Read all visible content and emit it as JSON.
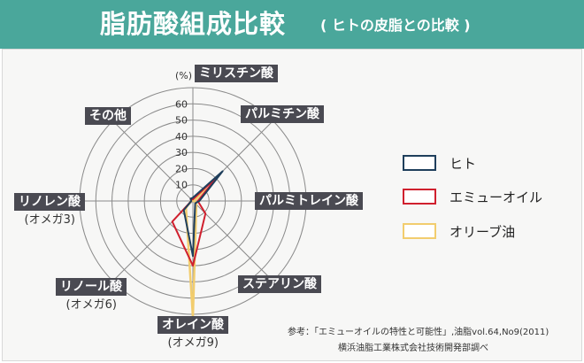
{
  "header": {
    "title": "脂肪酸組成比較",
    "subtitle": "( ヒトの皮脂との比較 )"
  },
  "chart_data": {
    "type": "radar",
    "unit": "(%)",
    "rmax": 70,
    "ticks": [
      10,
      20,
      30,
      40,
      50,
      60
    ],
    "axes": [
      {
        "label": "ミリスチン酸",
        "sub": ""
      },
      {
        "label": "パルミチン酸",
        "sub": ""
      },
      {
        "label": "パルミトレイン酸",
        "sub": ""
      },
      {
        "label": "ステアリン酸",
        "sub": ""
      },
      {
        "label": "オレイン酸",
        "sub": "(オメガ9)"
      },
      {
        "label": "リノール酸",
        "sub": "(オメガ6)"
      },
      {
        "label": "リノレン酸",
        "sub": "(オメガ3)"
      },
      {
        "label": "その他",
        "sub": ""
      }
    ],
    "series": [
      {
        "name": "ヒト",
        "color": "#1f3f5c",
        "values": [
          2,
          26,
          4,
          2,
          34,
          8,
          1,
          2
        ]
      },
      {
        "name": "エミューオイル",
        "color": "#d0202e",
        "values": [
          1,
          23,
          3,
          11,
          40,
          18,
          1,
          2
        ]
      },
      {
        "name": "オリーブ油",
        "color": "#f2cd6e",
        "values": [
          0,
          11,
          1,
          3,
          72,
          6,
          1,
          1
        ]
      }
    ]
  },
  "note": {
    "line1": "参考：「エミューオイルの特性と可能性」,油脂vol.64,No9(2011)",
    "line2": "横浜油脂工業株式会社技術開発部調べ"
  }
}
